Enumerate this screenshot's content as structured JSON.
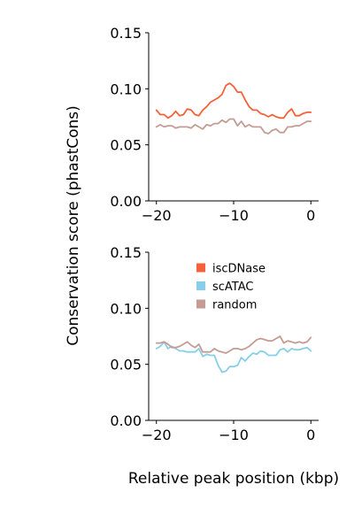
{
  "figure": {
    "ylabel": "Conservation score (phastCons)",
    "xlabel": "Relative peak position (kbp)"
  },
  "chart_data": [
    {
      "type": "line",
      "xlim": [
        -21,
        1
      ],
      "ylim": [
        0,
        0.15
      ],
      "xticks": [
        -20,
        -10,
        0
      ],
      "xtick_labels": [
        "−20",
        "−10",
        "0"
      ],
      "yticks": [
        0,
        0.05,
        0.1,
        0.15
      ],
      "ytick_labels": [
        "0.00",
        "0.05",
        "0.10",
        "0.15"
      ],
      "grid": false,
      "x": [
        -20.0,
        -19.5,
        -19.0,
        -18.5,
        -18.0,
        -17.5,
        -17.0,
        -16.5,
        -16.0,
        -15.5,
        -15.0,
        -14.5,
        -14.0,
        -13.5,
        -13.0,
        -12.5,
        -12.0,
        -11.5,
        -11.0,
        -10.5,
        -10.0,
        -9.5,
        -9.0,
        -8.5,
        -8.0,
        -7.5,
        -7.0,
        -6.5,
        -6.0,
        -5.5,
        -5.0,
        -4.5,
        -4.0,
        -3.5,
        -3.0,
        -2.5,
        -2.0,
        -1.5,
        -1.0,
        -0.5,
        0.0
      ],
      "series": [
        {
          "name": "iscDNase",
          "color": "#f4623a",
          "values": [
            0.081,
            0.077,
            0.077,
            0.074,
            0.076,
            0.08,
            0.076,
            0.077,
            0.082,
            0.081,
            0.077,
            0.076,
            0.081,
            0.084,
            0.088,
            0.09,
            0.092,
            0.095,
            0.103,
            0.105,
            0.102,
            0.097,
            0.097,
            0.09,
            0.084,
            0.081,
            0.081,
            0.078,
            0.077,
            0.075,
            0.077,
            0.075,
            0.074,
            0.074,
            0.079,
            0.082,
            0.076,
            0.076,
            0.078,
            0.079,
            0.079
          ]
        },
        {
          "name": "random",
          "color": "#c49c94",
          "values": [
            0.066,
            0.068,
            0.066,
            0.067,
            0.067,
            0.065,
            0.066,
            0.066,
            0.066,
            0.065,
            0.068,
            0.066,
            0.064,
            0.068,
            0.067,
            0.069,
            0.069,
            0.072,
            0.07,
            0.073,
            0.073,
            0.067,
            0.071,
            0.066,
            0.068,
            0.066,
            0.066,
            0.066,
            0.061,
            0.06,
            0.063,
            0.064,
            0.061,
            0.061,
            0.066,
            0.066,
            0.067,
            0.067,
            0.069,
            0.071,
            0.071
          ]
        }
      ]
    },
    {
      "type": "line",
      "xlim": [
        -21,
        1
      ],
      "ylim": [
        0,
        0.15
      ],
      "xticks": [
        -20,
        -10,
        0
      ],
      "xtick_labels": [
        "−20",
        "−10",
        "0"
      ],
      "yticks": [
        0,
        0.05,
        0.1,
        0.15
      ],
      "ytick_labels": [
        "0.00",
        "0.05",
        "0.10",
        "0.15"
      ],
      "grid": false,
      "legend": {
        "placement": "top-right",
        "entries": [
          {
            "name": "iscDNase",
            "color": "#f4623a"
          },
          {
            "name": "scATAC",
            "color": "#87ceeb"
          },
          {
            "name": "random",
            "color": "#c49c94"
          }
        ]
      },
      "x": [
        -20.0,
        -19.5,
        -19.0,
        -18.5,
        -18.0,
        -17.5,
        -17.0,
        -16.5,
        -16.0,
        -15.5,
        -15.0,
        -14.5,
        -14.0,
        -13.5,
        -13.0,
        -12.5,
        -12.0,
        -11.5,
        -11.0,
        -10.5,
        -10.0,
        -9.5,
        -9.0,
        -8.5,
        -8.0,
        -7.5,
        -7.0,
        -6.5,
        -6.0,
        -5.5,
        -5.0,
        -4.5,
        -4.0,
        -3.5,
        -3.0,
        -2.5,
        -2.0,
        -1.5,
        -1.0,
        -0.5,
        0.0
      ],
      "series": [
        {
          "name": "scATAC",
          "color": "#87ceeb",
          "values": [
            0.064,
            0.066,
            0.07,
            0.064,
            0.066,
            0.064,
            0.062,
            0.062,
            0.061,
            0.061,
            0.061,
            0.064,
            0.057,
            0.059,
            0.058,
            0.058,
            0.049,
            0.043,
            0.044,
            0.048,
            0.048,
            0.049,
            0.056,
            0.053,
            0.057,
            0.06,
            0.059,
            0.062,
            0.061,
            0.058,
            0.058,
            0.058,
            0.063,
            0.064,
            0.061,
            0.064,
            0.063,
            0.063,
            0.064,
            0.065,
            0.062
          ]
        },
        {
          "name": "random",
          "color": "#c49c94",
          "values": [
            0.069,
            0.069,
            0.07,
            0.068,
            0.065,
            0.065,
            0.066,
            0.068,
            0.07,
            0.067,
            0.065,
            0.068,
            0.061,
            0.061,
            0.061,
            0.064,
            0.062,
            0.061,
            0.06,
            0.062,
            0.064,
            0.064,
            0.063,
            0.064,
            0.066,
            0.069,
            0.072,
            0.073,
            0.072,
            0.071,
            0.071,
            0.073,
            0.075,
            0.069,
            0.071,
            0.07,
            0.069,
            0.07,
            0.069,
            0.07,
            0.074
          ]
        }
      ]
    }
  ]
}
